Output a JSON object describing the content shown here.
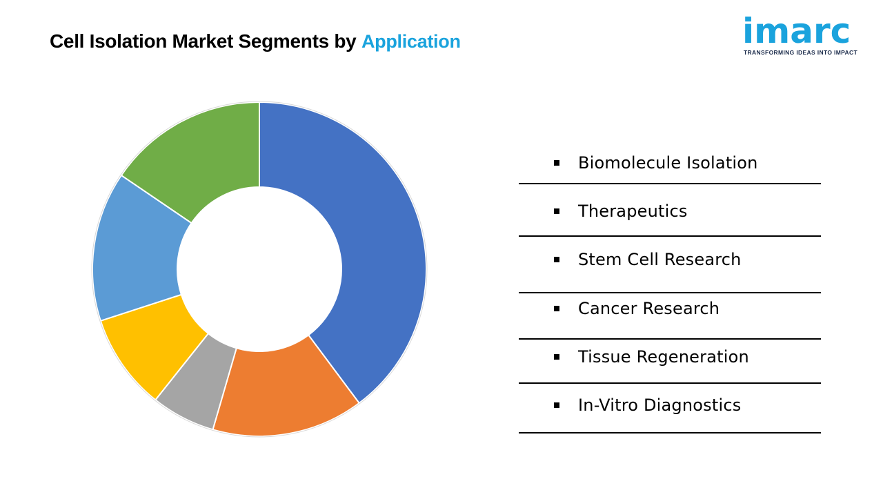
{
  "header": {
    "title_main": "Cell Isolation Market Segments by",
    "title_accent": "Application"
  },
  "logo": {
    "word": "imarc",
    "tagline": "TRANSFORMING IDEAS INTO IMPACT",
    "color": "#1aa3dd"
  },
  "chart_data": {
    "type": "pie",
    "style": "donut",
    "categories": [
      "Biomolecule Isolation",
      "Therapeutics",
      "Stem Cell Research",
      "Cancer Research",
      "Tissue Regeneration",
      "In-Vitro Diagnostics"
    ],
    "values": [
      39.8,
      14.7,
      6.2,
      9.3,
      14.5,
      15.5
    ],
    "colors": [
      "#4472c4",
      "#ed7d31",
      "#a5a5a5",
      "#ffc000",
      "#5b9bd5",
      "#70ad47"
    ],
    "legend_position": "right"
  }
}
